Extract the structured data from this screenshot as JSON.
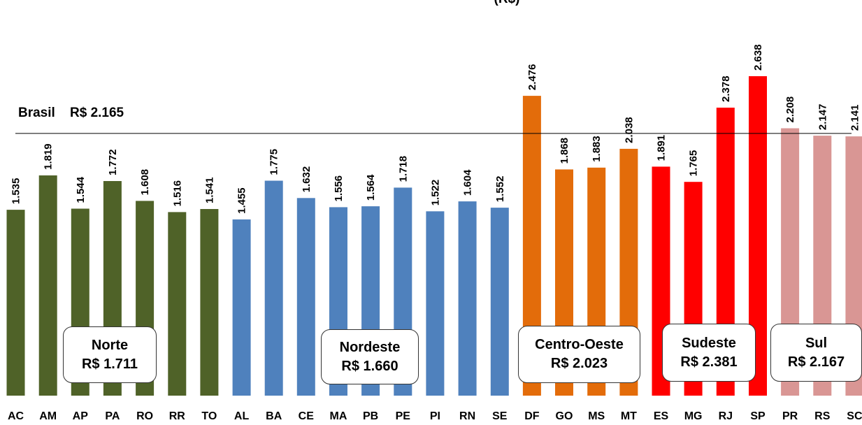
{
  "chart_data": {
    "type": "bar",
    "title": "(R$)",
    "categories": [
      "AC",
      "AM",
      "AP",
      "PA",
      "RO",
      "RR",
      "TO",
      "AL",
      "BA",
      "CE",
      "MA",
      "PB",
      "PE",
      "PI",
      "RN",
      "SE",
      "DF",
      "GO",
      "MS",
      "MT",
      "ES",
      "MG",
      "RJ",
      "SP",
      "PR",
      "RS",
      "SC"
    ],
    "values": [
      1535,
      1819,
      1544,
      1772,
      1608,
      1516,
      1541,
      1455,
      1775,
      1632,
      1556,
      1564,
      1718,
      1522,
      1604,
      1552,
      2476,
      1868,
      1883,
      2038,
      1891,
      1765,
      2378,
      2638,
      2208,
      2147,
      2141
    ],
    "value_labels": [
      "1.535",
      "1.819",
      "1.544",
      "1.772",
      "1.608",
      "1.516",
      "1.541",
      "1.455",
      "1.775",
      "1.632",
      "1.556",
      "1.564",
      "1.718",
      "1.522",
      "1.604",
      "1.552",
      "2.476",
      "1.868",
      "1.883",
      "2.038",
      "1.891",
      "1.765",
      "2.378",
      "2.638",
      "2.208",
      "2.147",
      "2.141"
    ],
    "regions": [
      {
        "name": "Norte",
        "value_label": "R$ 1.711",
        "color": "#4F6228",
        "count": 7
      },
      {
        "name": "Nordeste",
        "value_label": "R$ 1.660",
        "color": "#4F81BD",
        "count": 9
      },
      {
        "name": "Centro-Oeste",
        "value_label": "R$ 2.023",
        "color": "#E36C0A",
        "count": 4
      },
      {
        "name": "Sudeste",
        "value_label": "R$ 2.381",
        "color": "#FF0000",
        "count": 4
      },
      {
        "name": "Sul",
        "value_label": "R$ 2.167",
        "color": "#D99694",
        "count": 3
      }
    ],
    "reference_line": {
      "label": "Brasil",
      "value_label": "R$ 2.165",
      "value": 2165
    },
    "ylim": [
      0,
      2800
    ],
    "grid": false,
    "legend": "none"
  }
}
